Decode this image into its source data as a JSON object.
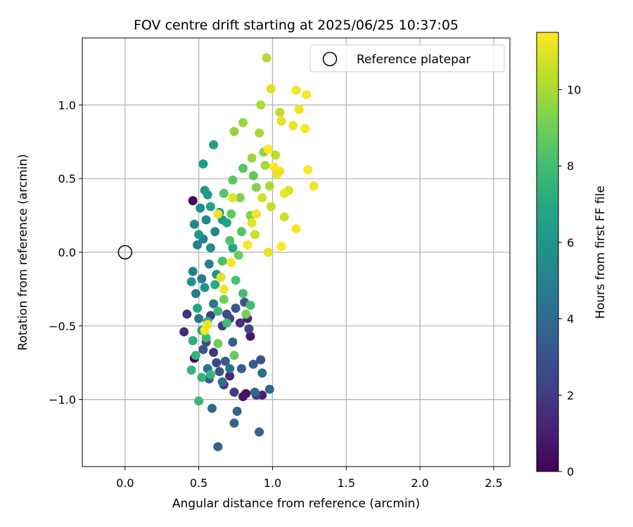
{
  "chart_data": {
    "type": "scatter",
    "title": "FOV centre drift starting at 2025/06/25 10:37:05",
    "xlabel": "Angular distance from reference (arcmin)",
    "ylabel": "Rotation from reference (arcmin)",
    "xlim": [
      -0.29,
      2.61
    ],
    "ylim": [
      -1.455,
      1.455
    ],
    "xticks": [
      0.0,
      0.5,
      1.0,
      1.5,
      2.0,
      2.5
    ],
    "xtick_labels": [
      "0.0",
      "0.5",
      "1.0",
      "1.5",
      "2.0",
      "2.5"
    ],
    "yticks": [
      -1.0,
      -0.5,
      0.0,
      0.5,
      1.0
    ],
    "ytick_labels": [
      "−1.0",
      "−0.5",
      "0.0",
      "0.5",
      "1.0"
    ],
    "grid": true,
    "legend": {
      "placement": "top-right",
      "entries": [
        "Reference platepar"
      ]
    },
    "reference_point": {
      "x": 0.0,
      "y": 0.0,
      "label": "Reference platepar"
    },
    "colorbar": {
      "label": "Hours from first FF file",
      "colormap": "viridis",
      "range": [
        0,
        11.5
      ],
      "ticks": [
        0,
        2,
        4,
        6,
        8,
        10
      ],
      "tick_labels": [
        "0",
        "2",
        "4",
        "6",
        "8",
        "10"
      ]
    },
    "points": [
      {
        "x": 0.46,
        "y": 0.35,
        "h": 0.2
      },
      {
        "x": 0.47,
        "y": -0.72,
        "h": 0.1
      },
      {
        "x": 0.82,
        "y": -0.96,
        "h": 0.4
      },
      {
        "x": 0.8,
        "y": -0.98,
        "h": 0.6
      },
      {
        "x": 0.85,
        "y": -0.57,
        "h": 0.8
      },
      {
        "x": 0.93,
        "y": -0.97,
        "h": 1.0
      },
      {
        "x": 0.83,
        "y": -0.45,
        "h": 1.2
      },
      {
        "x": 0.71,
        "y": -0.84,
        "h": 1.4
      },
      {
        "x": 0.4,
        "y": -0.54,
        "h": 1.5
      },
      {
        "x": 0.42,
        "y": -0.42,
        "h": 1.6
      },
      {
        "x": 0.78,
        "y": -0.48,
        "h": 1.7
      },
      {
        "x": 0.67,
        "y": -0.9,
        "h": 1.8
      },
      {
        "x": 0.6,
        "y": -0.68,
        "h": 1.9
      },
      {
        "x": 0.74,
        "y": -0.95,
        "h": 2.0
      },
      {
        "x": 0.89,
        "y": -0.97,
        "h": 2.0
      },
      {
        "x": 0.66,
        "y": -0.5,
        "h": 2.1
      },
      {
        "x": 0.71,
        "y": -0.45,
        "h": 2.2
      },
      {
        "x": 0.58,
        "y": -0.43,
        "h": 2.3
      },
      {
        "x": 0.84,
        "y": -0.52,
        "h": 2.4
      },
      {
        "x": 0.62,
        "y": -0.75,
        "h": 2.5
      },
      {
        "x": 0.69,
        "y": -0.42,
        "h": 2.6
      },
      {
        "x": 0.55,
        "y": -0.61,
        "h": 2.7
      },
      {
        "x": 0.92,
        "y": -0.73,
        "h": 2.8
      },
      {
        "x": 0.53,
        "y": -0.66,
        "h": 2.9
      },
      {
        "x": 0.64,
        "y": -0.81,
        "h": 3.0
      },
      {
        "x": 0.75,
        "y": -0.38,
        "h": 3.0
      },
      {
        "x": 0.81,
        "y": -0.34,
        "h": 3.1
      },
      {
        "x": 0.57,
        "y": -0.86,
        "h": 3.2
      },
      {
        "x": 0.68,
        "y": -0.74,
        "h": 3.3
      },
      {
        "x": 0.79,
        "y": -0.79,
        "h": 3.4
      },
      {
        "x": 0.87,
        "y": -0.76,
        "h": 3.5
      },
      {
        "x": 0.73,
        "y": -0.61,
        "h": 3.6
      },
      {
        "x": 0.63,
        "y": -1.32,
        "h": 3.6
      },
      {
        "x": 0.74,
        "y": -1.16,
        "h": 3.7
      },
      {
        "x": 0.91,
        "y": -1.22,
        "h": 3.7
      },
      {
        "x": 0.76,
        "y": -1.08,
        "h": 3.8
      },
      {
        "x": 0.88,
        "y": -0.95,
        "h": 3.8
      },
      {
        "x": 0.98,
        "y": -0.93,
        "h": 3.9
      },
      {
        "x": 0.59,
        "y": -1.06,
        "h": 4.0
      },
      {
        "x": 0.93,
        "y": -0.82,
        "h": 4.1
      },
      {
        "x": 0.66,
        "y": -0.88,
        "h": 4.2
      },
      {
        "x": 0.71,
        "y": -0.79,
        "h": 4.3
      },
      {
        "x": 0.56,
        "y": -0.79,
        "h": 4.4
      },
      {
        "x": 0.5,
        "y": -0.45,
        "h": 4.5
      },
      {
        "x": 0.6,
        "y": -0.35,
        "h": 4.6
      },
      {
        "x": 0.48,
        "y": -0.28,
        "h": 4.7
      },
      {
        "x": 0.52,
        "y": -0.18,
        "h": 4.8
      },
      {
        "x": 0.46,
        "y": -0.13,
        "h": 4.9
      },
      {
        "x": 0.57,
        "y": -0.08,
        "h": 5.0
      },
      {
        "x": 0.49,
        "y": 0.05,
        "h": 5.0
      },
      {
        "x": 0.53,
        "y": 0.09,
        "h": 5.1
      },
      {
        "x": 0.61,
        "y": 0.14,
        "h": 5.2
      },
      {
        "x": 0.47,
        "y": 0.19,
        "h": 5.3
      },
      {
        "x": 0.55,
        "y": 0.22,
        "h": 5.4
      },
      {
        "x": 0.64,
        "y": 0.27,
        "h": 5.5
      },
      {
        "x": 0.51,
        "y": 0.3,
        "h": 5.6
      },
      {
        "x": 0.58,
        "y": 0.03,
        "h": 5.7
      },
      {
        "x": 0.45,
        "y": -0.2,
        "h": 5.8
      },
      {
        "x": 0.54,
        "y": -0.24,
        "h": 5.9
      },
      {
        "x": 0.62,
        "y": -0.15,
        "h": 6.0
      },
      {
        "x": 0.5,
        "y": 0.12,
        "h": 6.1
      },
      {
        "x": 0.56,
        "y": 0.39,
        "h": 6.2
      },
      {
        "x": 0.54,
        "y": 0.42,
        "h": 6.3
      },
      {
        "x": 0.66,
        "y": 0.22,
        "h": 6.3
      },
      {
        "x": 0.53,
        "y": 0.6,
        "h": 6.4
      },
      {
        "x": 0.6,
        "y": 0.73,
        "h": 6.5
      },
      {
        "x": 0.58,
        "y": 0.31,
        "h": 6.6
      },
      {
        "x": 0.69,
        "y": 0.2,
        "h": 6.7
      },
      {
        "x": 0.73,
        "y": 0.03,
        "h": 6.8
      },
      {
        "x": 0.49,
        "y": -0.38,
        "h": 6.9
      },
      {
        "x": 0.52,
        "y": -0.53,
        "h": 7.0
      },
      {
        "x": 0.61,
        "y": -0.22,
        "h": 7.1
      },
      {
        "x": 0.56,
        "y": -0.47,
        "h": 7.2
      },
      {
        "x": 0.46,
        "y": -0.6,
        "h": 7.3
      },
      {
        "x": 0.48,
        "y": -0.7,
        "h": 7.4
      },
      {
        "x": 0.45,
        "y": -0.8,
        "h": 7.5
      },
      {
        "x": 0.52,
        "y": -0.85,
        "h": 7.5
      },
      {
        "x": 0.58,
        "y": -0.83,
        "h": 7.6
      },
      {
        "x": 0.5,
        "y": -1.01,
        "h": 7.7
      },
      {
        "x": 0.55,
        "y": -0.58,
        "h": 7.8
      },
      {
        "x": 0.63,
        "y": -0.4,
        "h": 7.8
      },
      {
        "x": 0.69,
        "y": -0.48,
        "h": 7.9
      },
      {
        "x": 0.8,
        "y": -0.28,
        "h": 8.0
      },
      {
        "x": 0.85,
        "y": -0.36,
        "h": 8.0
      },
      {
        "x": 0.75,
        "y": -0.19,
        "h": 8.1
      },
      {
        "x": 0.66,
        "y": -0.06,
        "h": 8.2
      },
      {
        "x": 0.71,
        "y": 0.08,
        "h": 8.3
      },
      {
        "x": 0.79,
        "y": 0.14,
        "h": 8.3
      },
      {
        "x": 0.67,
        "y": 0.4,
        "h": 8.4
      },
      {
        "x": 0.73,
        "y": 0.49,
        "h": 8.5
      },
      {
        "x": 0.8,
        "y": 0.57,
        "h": 8.5
      },
      {
        "x": 0.87,
        "y": 0.52,
        "h": 8.6
      },
      {
        "x": 0.72,
        "y": 0.26,
        "h": 8.7
      },
      {
        "x": 0.77,
        "y": -0.02,
        "h": 8.8
      },
      {
        "x": 0.74,
        "y": -0.7,
        "h": 8.8
      },
      {
        "x": 0.63,
        "y": -0.62,
        "h": 8.9
      },
      {
        "x": 0.67,
        "y": -0.32,
        "h": 9.0
      },
      {
        "x": 0.82,
        "y": -0.42,
        "h": 9.1
      },
      {
        "x": 0.78,
        "y": 0.37,
        "h": 9.2
      },
      {
        "x": 0.85,
        "y": 0.25,
        "h": 9.3
      },
      {
        "x": 0.89,
        "y": 0.44,
        "h": 9.4
      },
      {
        "x": 0.94,
        "y": 0.68,
        "h": 9.5
      },
      {
        "x": 0.74,
        "y": 0.82,
        "h": 9.6
      },
      {
        "x": 0.8,
        "y": 0.88,
        "h": 9.7
      },
      {
        "x": 0.86,
        "y": 0.64,
        "h": 9.8
      },
      {
        "x": 0.91,
        "y": 0.81,
        "h": 9.9
      },
      {
        "x": 0.95,
        "y": 0.59,
        "h": 10.0
      },
      {
        "x": 0.98,
        "y": 0.45,
        "h": 10.0
      },
      {
        "x": 0.92,
        "y": 1.0,
        "h": 10.1
      },
      {
        "x": 0.96,
        "y": 1.32,
        "h": 10.2
      },
      {
        "x": 1.02,
        "y": 0.66,
        "h": 10.3
      },
      {
        "x": 1.05,
        "y": 0.95,
        "h": 10.4
      },
      {
        "x": 0.99,
        "y": 0.31,
        "h": 10.5
      },
      {
        "x": 1.08,
        "y": 0.24,
        "h": 10.6
      },
      {
        "x": 0.88,
        "y": 0.12,
        "h": 10.6
      },
      {
        "x": 0.93,
        "y": 0.37,
        "h": 10.7
      },
      {
        "x": 1.11,
        "y": 0.42,
        "h": 10.8
      },
      {
        "x": 0.99,
        "y": 1.11,
        "h": 10.9
      },
      {
        "x": 1.06,
        "y": 0.89,
        "h": 11.0
      },
      {
        "x": 1.14,
        "y": 0.86,
        "h": 11.1
      },
      {
        "x": 1.18,
        "y": 0.97,
        "h": 11.2
      },
      {
        "x": 1.16,
        "y": 1.1,
        "h": 11.3
      },
      {
        "x": 1.23,
        "y": 1.07,
        "h": 11.4
      },
      {
        "x": 1.22,
        "y": 0.84,
        "h": 11.4
      },
      {
        "x": 1.24,
        "y": 0.56,
        "h": 11.5
      },
      {
        "x": 1.28,
        "y": 0.45,
        "h": 11.3
      },
      {
        "x": 1.16,
        "y": 0.16,
        "h": 11.4
      },
      {
        "x": 1.06,
        "y": 0.04,
        "h": 11.5
      },
      {
        "x": 0.97,
        "y": 0.7,
        "h": 11.5
      },
      {
        "x": 1.05,
        "y": 0.55,
        "h": 11.3
      },
      {
        "x": 1.08,
        "y": 0.4,
        "h": 11.2
      },
      {
        "x": 0.89,
        "y": 0.26,
        "h": 11.3
      },
      {
        "x": 0.83,
        "y": 0.05,
        "h": 11.4
      },
      {
        "x": 0.97,
        "y": 0.0,
        "h": 11.1
      },
      {
        "x": 0.72,
        "y": -0.07,
        "h": 11.4
      },
      {
        "x": 0.63,
        "y": 0.26,
        "h": 11.2
      },
      {
        "x": 0.65,
        "y": -0.17,
        "h": 11.0
      },
      {
        "x": 0.67,
        "y": -0.25,
        "h": 11.3
      },
      {
        "x": 0.54,
        "y": -0.53,
        "h": 11.4
      },
      {
        "x": 0.56,
        "y": -0.49,
        "h": 11.2
      },
      {
        "x": 0.86,
        "y": 0.2,
        "h": 11.0
      },
      {
        "x": 1.01,
        "y": 0.58,
        "h": 11.4
      },
      {
        "x": 1.03,
        "y": 0.53,
        "h": 11.1
      },
      {
        "x": 0.73,
        "y": 0.37,
        "h": 11.0
      }
    ]
  }
}
